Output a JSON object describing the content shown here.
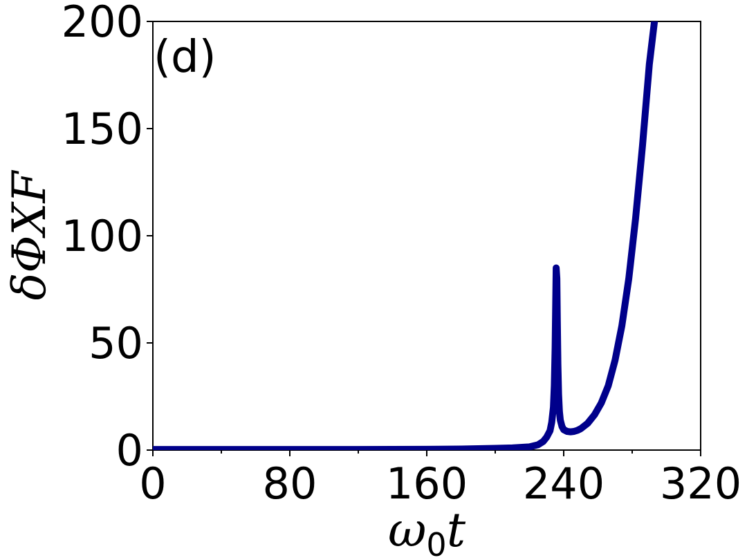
{
  "chart_data": {
    "type": "line",
    "panel_label": "(d)",
    "xlabel_main": "ω",
    "xlabel_sub": "0",
    "xlabel_var": "t",
    "ylabel": "δΦXF",
    "xlim": [
      0,
      320
    ],
    "ylim": [
      0,
      200
    ],
    "xticks": [
      0,
      80,
      160,
      240,
      320
    ],
    "xticks_minor": [
      40,
      120,
      200,
      280
    ],
    "yticks": [
      0,
      50,
      100,
      150,
      200
    ],
    "grid": false,
    "series": [
      {
        "color": "#00008b",
        "x": [
          0,
          40,
          80,
          120,
          160,
          180,
          200,
          210,
          220,
          225,
          228,
          230,
          232,
          233,
          234,
          234.5,
          235,
          235.3,
          235.6,
          236,
          236.3,
          236.6,
          237,
          237.5,
          238,
          239,
          240,
          242,
          244,
          246,
          248,
          250,
          254,
          258,
          262,
          266,
          270,
          274,
          278,
          282,
          286,
          290,
          293,
          294.5
        ],
        "y": [
          0.3,
          0.3,
          0.3,
          0.3,
          0.35,
          0.5,
          0.8,
          1.0,
          1.5,
          2.5,
          4,
          6,
          9,
          13,
          20,
          30,
          48,
          68,
          85,
          80,
          60,
          40,
          26,
          18,
          14,
          11,
          9.5,
          8.7,
          8.5,
          8.7,
          9.2,
          10,
          12.5,
          16.5,
          22,
          30,
          42,
          58,
          80,
          108,
          142,
          180,
          200,
          210
        ]
      }
    ]
  }
}
